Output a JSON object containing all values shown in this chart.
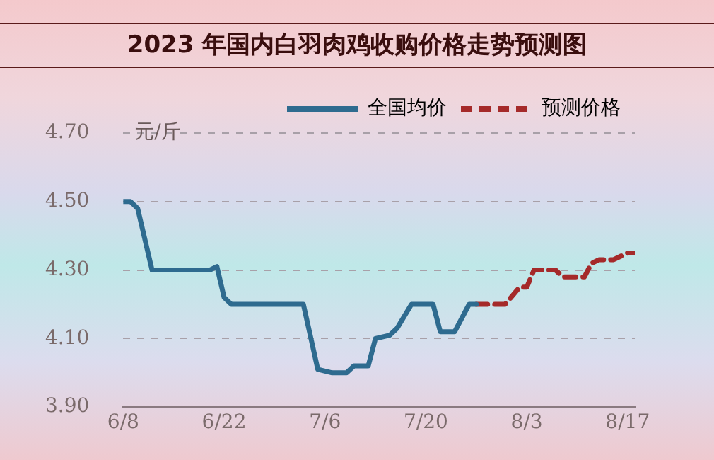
{
  "chart_data": {
    "type": "line",
    "title": "2023 年国内白羽肉鸡收购价格走势预测图",
    "ylabel": "元/斤",
    "xlim": [
      "--06-08",
      "--08-18"
    ],
    "xticks": [
      {
        "value": "--06-08",
        "label": "6/8"
      },
      {
        "value": "--06-22",
        "label": "6/22"
      },
      {
        "value": "--07-06",
        "label": "7/6"
      },
      {
        "value": "--07-20",
        "label": "7/20"
      },
      {
        "value": "--08-03",
        "label": "8/3"
      },
      {
        "value": "--08-17",
        "label": "8/17"
      }
    ],
    "ylim": [
      3.9,
      4.7
    ],
    "yticks": [
      {
        "value": 3.9,
        "label": "3.90"
      },
      {
        "value": 4.1,
        "label": "4.10"
      },
      {
        "value": 4.3,
        "label": "4.30"
      },
      {
        "value": 4.5,
        "label": "4.50"
      },
      {
        "value": 4.7,
        "label": "4.70"
      }
    ],
    "grid": "y",
    "legend": "top right",
    "marker": "none",
    "series": [
      {
        "name": "全国均价",
        "color": "#2e6b8f",
        "line_style": "solid",
        "x": [
          "--06-08",
          "--06-09",
          "--06-10",
          "--06-12",
          "--06-20",
          "--06-21",
          "--06-22",
          "--06-23",
          "--07-03",
          "--07-05",
          "--07-07",
          "--07-09",
          "--07-10",
          "--07-12",
          "--07-13",
          "--07-15",
          "--07-16",
          "--07-18",
          "--07-21",
          "--07-22",
          "--07-24",
          "--07-26",
          "--07-27"
        ],
        "values": [
          4.5,
          4.5,
          4.48,
          4.3,
          4.3,
          4.31,
          4.22,
          4.2,
          4.2,
          4.01,
          4.0,
          4.0,
          4.02,
          4.02,
          4.1,
          4.11,
          4.13,
          4.2,
          4.2,
          4.12,
          4.12,
          4.2,
          4.2
        ]
      },
      {
        "name": "预测价格",
        "color": "#a52a2a",
        "line_style": "dashed",
        "x": [
          "--07-27",
          "--07-31",
          "--08-02",
          "--08-03",
          "--08-04",
          "--08-07",
          "--08-08",
          "--08-11",
          "--08-12",
          "--08-13",
          "--08-15",
          "--08-17",
          "--08-18"
        ],
        "values": [
          4.2,
          4.2,
          4.25,
          4.25,
          4.3,
          4.3,
          4.28,
          4.28,
          4.32,
          4.33,
          4.33,
          4.35,
          4.35
        ]
      }
    ]
  }
}
